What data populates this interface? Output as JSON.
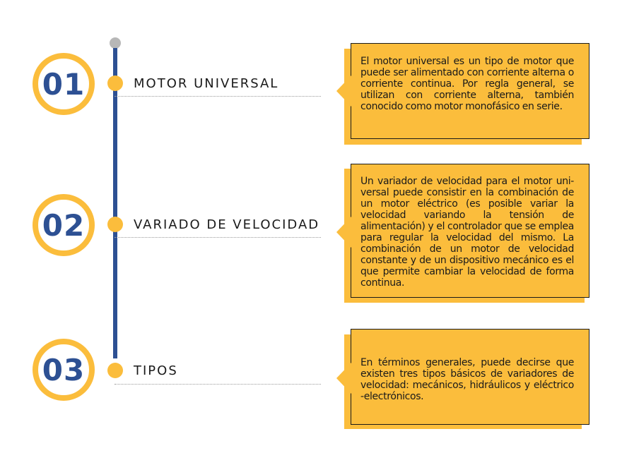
{
  "steps": [
    {
      "number": "01",
      "title": "MOTOR UNIVERSAL",
      "description": "El motor universal es un tipo de motor que puede ser alimentado con corriente alterna o corriente continua. Por regla general, se utilizan con corriente alterna, también conocido como motor monofásico en serie."
    },
    {
      "number": "02",
      "title": "VARIADO DE VELOCIDAD",
      "description": "Un variador de velocidad para el motor uni-versal puede consistir en la combinación de un motor eléctrico (es posible variar la velocidad variando la tensión de alimentación) y el controlador que se emplea para regular la velocidad del mismo. La combinación de un motor de velocidad constante y de un dispositivo mecánico es el que permite cambiar la velocidad de forma continua."
    },
    {
      "number": "03",
      "title": "TIPOS",
      "description": "En términos generales, puede decirse que existen tres tipos básicos de variadores de velocidad: mecánicos, hidráulicos y eléctrico -electrónicos."
    }
  ],
  "colors": {
    "accent": "#fbbd3c",
    "primary": "#2d5093",
    "cap": "#b7b7b7"
  }
}
